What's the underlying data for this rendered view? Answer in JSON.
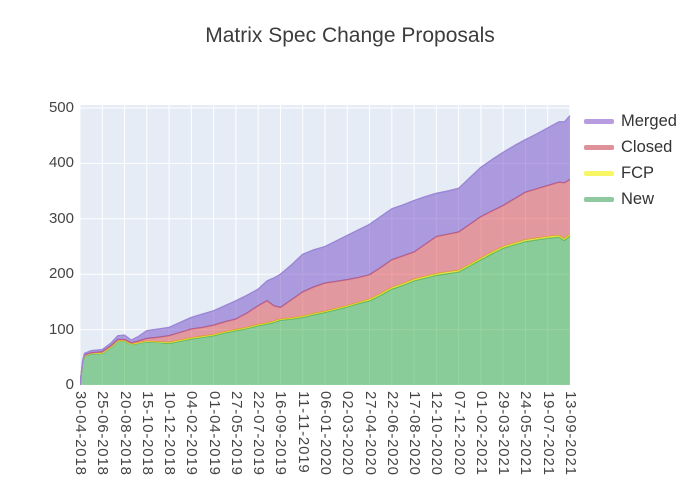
{
  "title": "Matrix Spec Change Proposals",
  "colors": {
    "page_bg": "#ffffff",
    "plot_bg": "#e5ecf6",
    "grid": "#ffffff",
    "axis_text": "#444444",
    "title_text": "#3c3c3c",
    "legend_text": "#333333"
  },
  "legend": {
    "position": "right",
    "items": [
      {
        "label": "Merged",
        "color": "#b79ce0"
      },
      {
        "label": "Closed",
        "color": "#df9199"
      },
      {
        "label": "FCP",
        "color": "#f7f765"
      },
      {
        "label": "New",
        "color": "#8fc9a0"
      }
    ]
  },
  "chart_data": {
    "type": "area",
    "stacked": true,
    "title": "Matrix Spec Change Proposals",
    "xlabel": "",
    "ylabel": "",
    "ylim": [
      0,
      505
    ],
    "grid": true,
    "legend_position": "right",
    "y_ticks": [
      0,
      100,
      200,
      300,
      400,
      500
    ],
    "x_tick_labels": [
      "30-04-2018",
      "25-06-2018",
      "20-08-2018",
      "15-10-2018",
      "10-12-2018",
      "04-02-2019",
      "01-04-2019",
      "27-05-2019",
      "22-07-2019",
      "16-09-2019",
      "11-11-2019",
      "06-01-2020",
      "02-03-2020",
      "27-04-2020",
      "22-06-2020",
      "17-08-2020",
      "12-10-2020",
      "07-12-2020",
      "01-02-2021",
      "29-03-2021",
      "24-05-2021",
      "19-07-2021",
      "13-09-2021"
    ],
    "x_index": [
      0,
      0.12,
      0.2,
      0.5,
      1,
      1.4,
      1.7,
      2,
      2.3,
      2.6,
      3,
      3.5,
      4,
      4.5,
      5,
      5.5,
      6,
      6.5,
      7,
      7.5,
      8,
      8.4,
      8.7,
      9,
      9.5,
      10,
      10.5,
      11,
      11.5,
      12,
      12.5,
      13,
      13.5,
      14,
      14.5,
      15,
      15.5,
      16,
      16.5,
      17,
      17.5,
      18,
      18.5,
      19,
      19.5,
      20,
      20.5,
      21,
      21.5,
      21.75,
      22
    ],
    "series": [
      {
        "name": "New",
        "fill": "rgba(47,170,62,0.5)",
        "line": "#57b26d",
        "values": [
          0,
          40,
          52,
          56,
          57,
          68,
          79,
          79,
          73,
          75,
          78,
          77,
          75,
          79,
          83,
          86,
          89,
          94,
          98,
          102,
          107,
          110,
          113,
          117,
          119,
          122,
          127,
          131,
          136,
          141,
          147,
          152,
          162,
          173,
          180,
          188,
          193,
          198,
          201,
          204,
          215,
          226,
          237,
          247,
          253,
          259,
          262,
          265,
          267,
          261,
          269
        ]
      },
      {
        "name": "FCP",
        "fill": "rgba(250,242,10,0.5)",
        "line": "#e2e22e",
        "values": [
          0,
          1,
          1,
          1,
          1,
          1,
          1,
          1,
          1,
          1,
          1,
          1,
          2,
          2,
          2,
          2,
          2,
          2,
          2,
          2,
          2,
          2,
          2,
          2,
          2,
          2,
          2,
          2,
          2,
          2,
          2,
          3,
          3,
          3,
          3,
          3,
          3,
          3,
          3,
          3,
          3,
          3,
          3,
          3,
          3,
          3,
          3,
          3,
          3,
          3,
          3
        ]
      },
      {
        "name": "Closed",
        "fill": "rgba(223,68,72,0.5)",
        "line": "#d06a78",
        "values": [
          0,
          1,
          1,
          1,
          2,
          2,
          2,
          2,
          2,
          3,
          5,
          8,
          12,
          14,
          16,
          16,
          17,
          18,
          19,
          26,
          34,
          40,
          28,
          21,
          33,
          44,
          48,
          51,
          49,
          47,
          45,
          44,
          47,
          50,
          50,
          49,
          58,
          67,
          68,
          69,
          72,
          75,
          74,
          74,
          80,
          86,
          89,
          92,
          96,
          101,
          99
        ]
      },
      {
        "name": "Merged",
        "fill": "rgba(113,72,196,0.5)",
        "line": "#9b87d6",
        "values": [
          0,
          2,
          3,
          4,
          4,
          5,
          7,
          8,
          5,
          8,
          14,
          15,
          15,
          18,
          21,
          24,
          26,
          29,
          33,
          32,
          30,
          36,
          50,
          60,
          63,
          68,
          67,
          66,
          73,
          80,
          86,
          91,
          92,
          92,
          92,
          93,
          86,
          78,
          78,
          79,
          84,
          89,
          93,
          96,
          96,
          95,
          99,
          104,
          109,
          110,
          115
        ]
      }
    ]
  }
}
